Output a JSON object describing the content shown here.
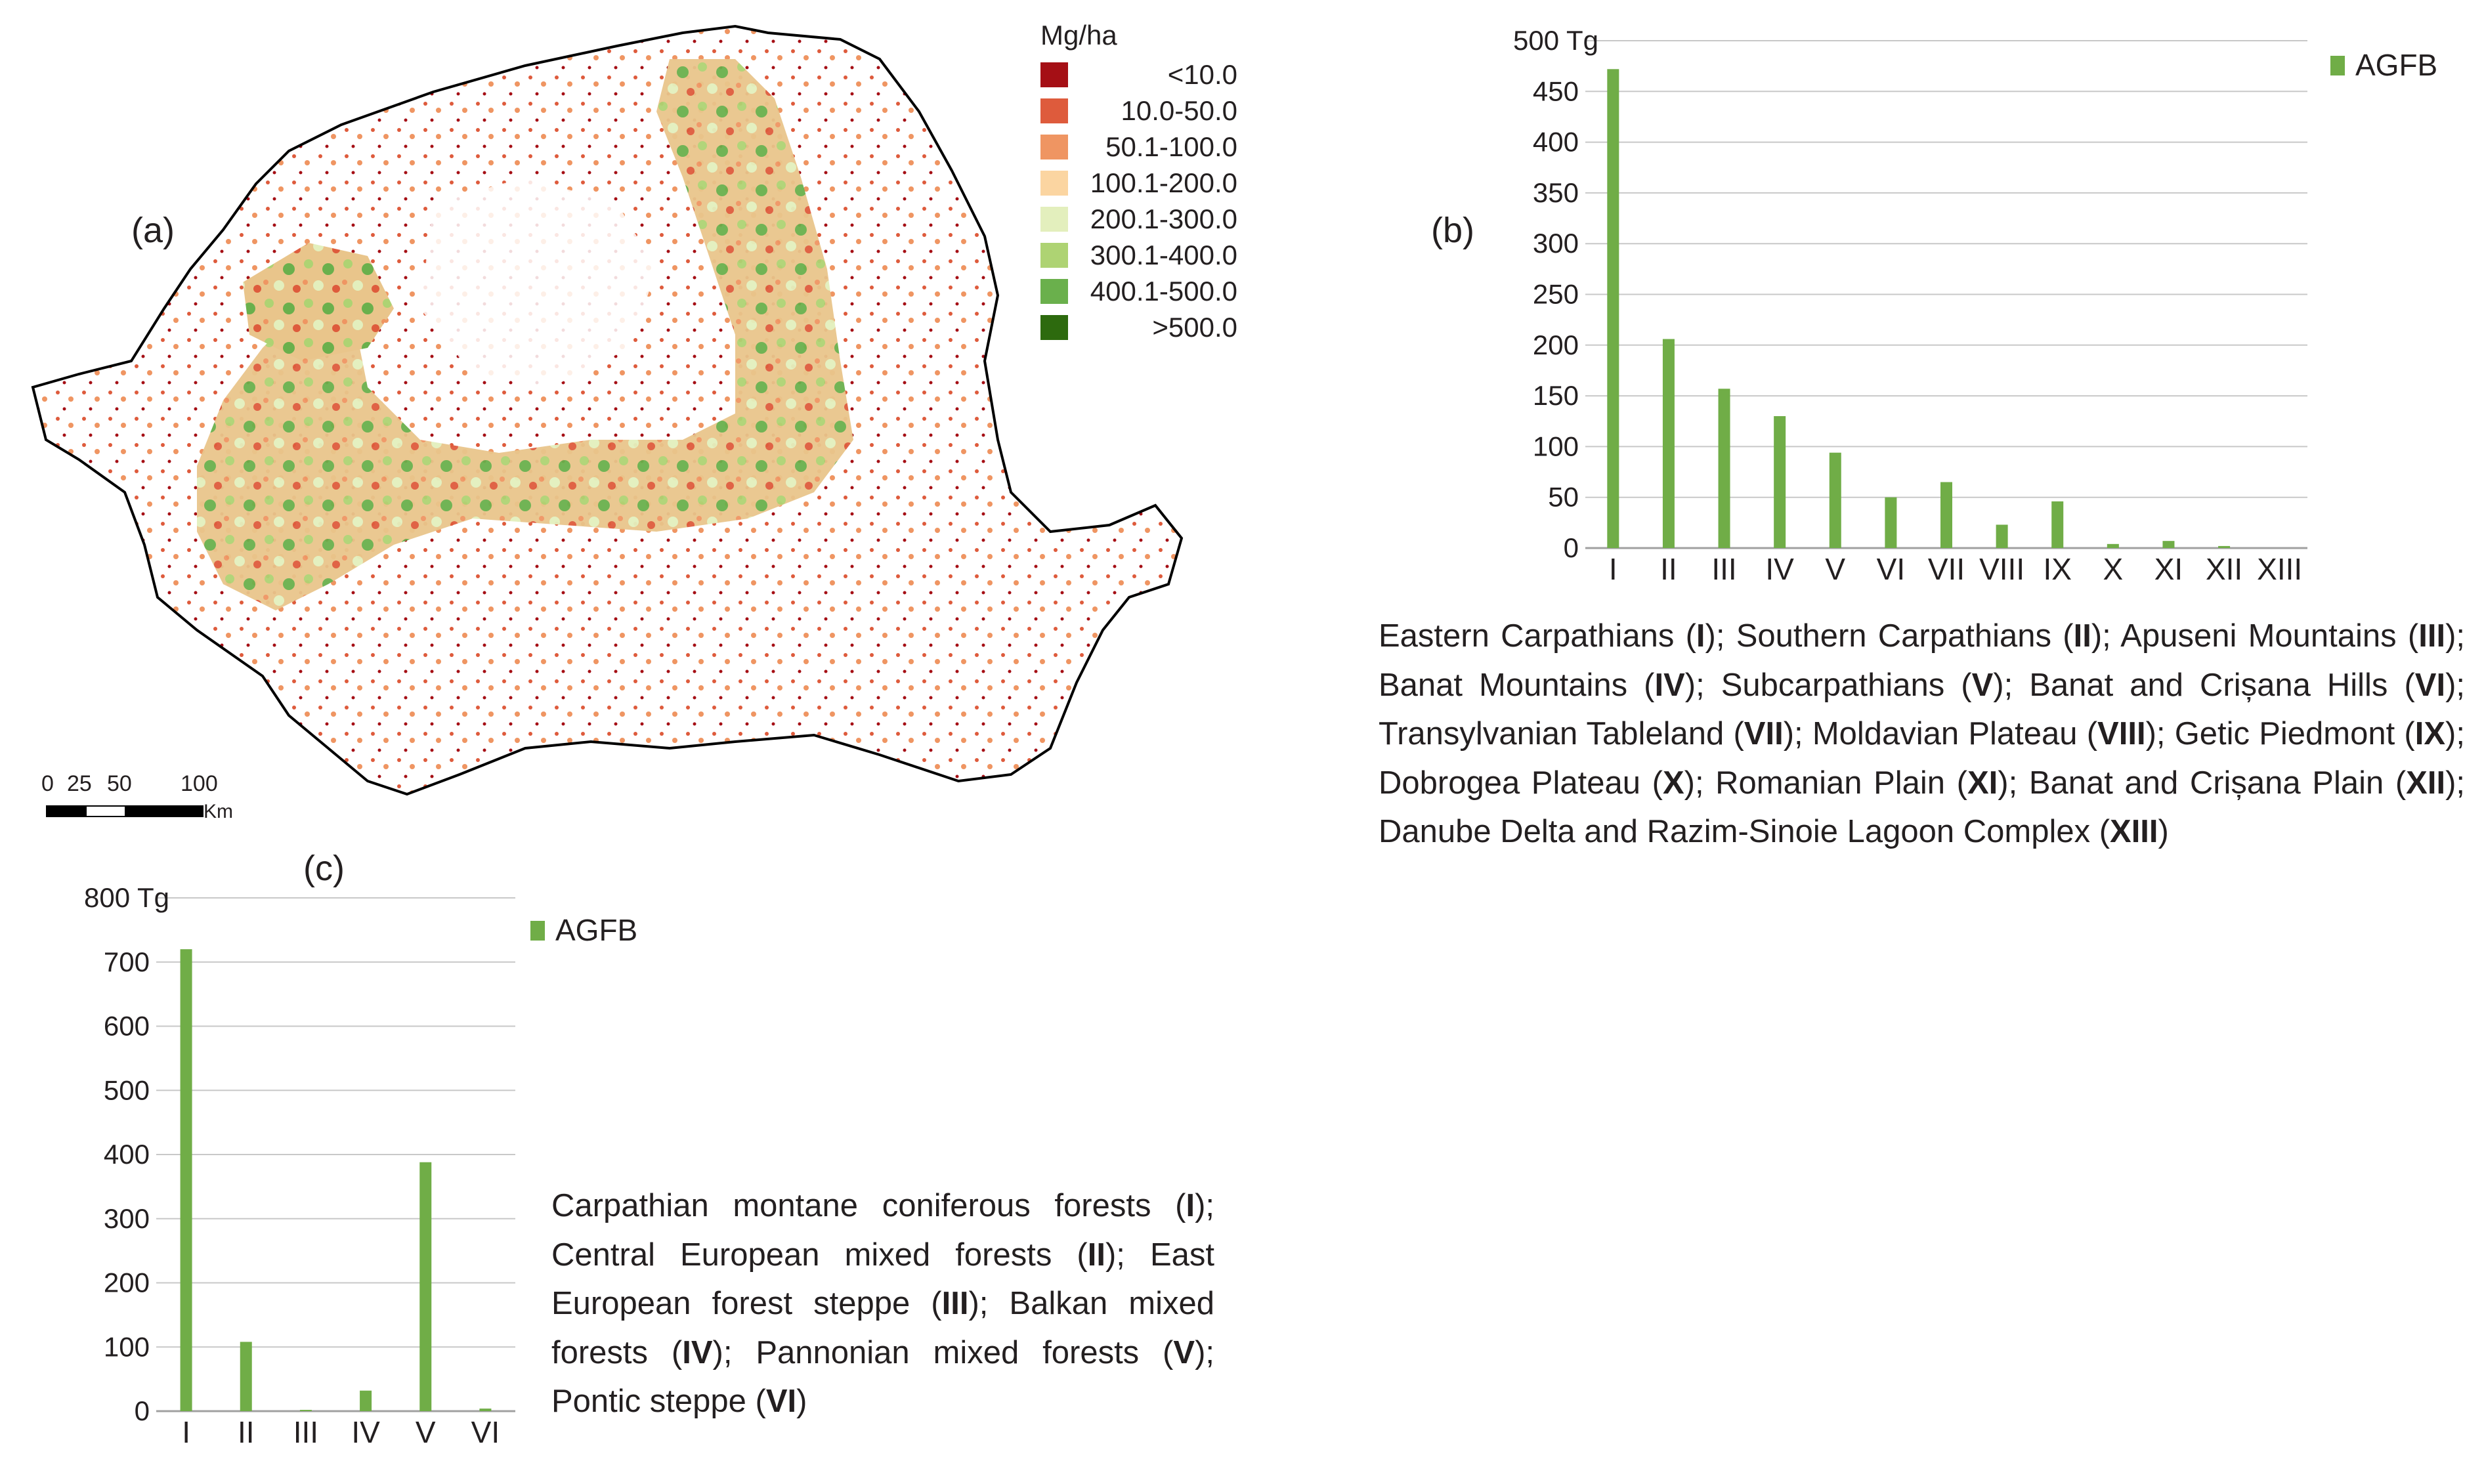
{
  "map": {
    "panel_label": "(a)",
    "legend_title": "Mg/ha",
    "legend": [
      {
        "label": "<10.0",
        "color": "#a50f15"
      },
      {
        "label": "10.0-50.0",
        "color": "#de5b3c"
      },
      {
        "label": "50.1-100.0",
        "color": "#ef9562"
      },
      {
        "label": "100.1-200.0",
        "color": "#fbd5a1"
      },
      {
        "label": "200.1-300.0",
        "color": "#e3efbd"
      },
      {
        "label": "300.1-400.0",
        "color": "#aed373"
      },
      {
        "label": "400.1-500.0",
        "color": "#6ab04c"
      },
      {
        "label": ">500.0",
        "color": "#2d6a0e"
      }
    ],
    "scalebar": {
      "ticks": [
        "0",
        "25",
        "50",
        "100"
      ],
      "unit": "Km"
    }
  },
  "chart_data": [
    {
      "type": "bar",
      "panel_label": "(b)",
      "ymax_label": "500 Tg",
      "ylim": [
        0,
        500
      ],
      "yticks": [
        0,
        50,
        100,
        150,
        200,
        250,
        300,
        350,
        400,
        450
      ],
      "categories": [
        "I",
        "II",
        "III",
        "IV",
        "V",
        "VI",
        "VII",
        "VIII",
        "IX",
        "X",
        "XI",
        "XII",
        "XIII"
      ],
      "series": [
        {
          "name": "AGFB",
          "values": [
            472,
            206,
            157,
            130,
            94,
            50,
            65,
            23,
            46,
            4,
            7,
            2,
            0
          ],
          "color": "#70ad47"
        }
      ],
      "legend": "top-right",
      "grid": true
    },
    {
      "type": "bar",
      "panel_label": "(c)",
      "ymax_label": "800 Tg",
      "ylim": [
        0,
        800
      ],
      "yticks": [
        0,
        100,
        200,
        300,
        400,
        500,
        600,
        700
      ],
      "categories": [
        "I",
        "II",
        "III",
        "IV",
        "V",
        "VI"
      ],
      "series": [
        {
          "name": "AGFB",
          "values": [
            720,
            108,
            2,
            32,
            388,
            4
          ],
          "color": "#70ad47"
        }
      ],
      "legend": "top-right",
      "grid": true
    }
  ],
  "caption_b": [
    {
      "name": "Eastern Carpathians",
      "code": "I",
      "sep": "; "
    },
    {
      "name": "Southern Carpathians",
      "code": "II",
      "sep": "; "
    },
    {
      "name": "Apuseni Mountains",
      "code": "III",
      "sep": "; "
    },
    {
      "name": "Banat Mountains",
      "code": "IV",
      "sep": "; "
    },
    {
      "name": "Subcarpathians",
      "code": "V",
      "sep": "; "
    },
    {
      "name": "Banat and Crișana Hills",
      "code": "VI",
      "sep": "; "
    },
    {
      "name": "Transylvanian Tableland",
      "code": "VII",
      "sep": "; "
    },
    {
      "name": "Moldavian Plateau",
      "code": "VIII",
      "sep": "; "
    },
    {
      "name": "Getic Piedmont",
      "code": "IX",
      "sep": "; "
    },
    {
      "name": "Dobrogea Plateau",
      "code": "X",
      "sep": "; "
    },
    {
      "name": "Romanian Plain",
      "code": "XI",
      "sep": "; "
    },
    {
      "name": "Banat and Crișana Plain",
      "code": "XII",
      "sep": "; "
    },
    {
      "name": "Danube Delta and Razim-Sinoie Lagoon Complex",
      "code": "XIII",
      "sep": ""
    }
  ],
  "caption_c": [
    {
      "name": "Carpathian montane coniferous forests",
      "code": "I",
      "sep": "; "
    },
    {
      "name": "Central European mixed forests",
      "code": "II",
      "sep": "; "
    },
    {
      "name": "East European forest steppe",
      "code": "III",
      "sep": "; "
    },
    {
      "name": "Balkan mixed forests",
      "code": "IV",
      "sep": "; "
    },
    {
      "name": "Pannonian mixed forests",
      "code": "V",
      "sep": "; "
    },
    {
      "name": "Pontic steppe",
      "code": "VI",
      "sep": ""
    }
  ]
}
